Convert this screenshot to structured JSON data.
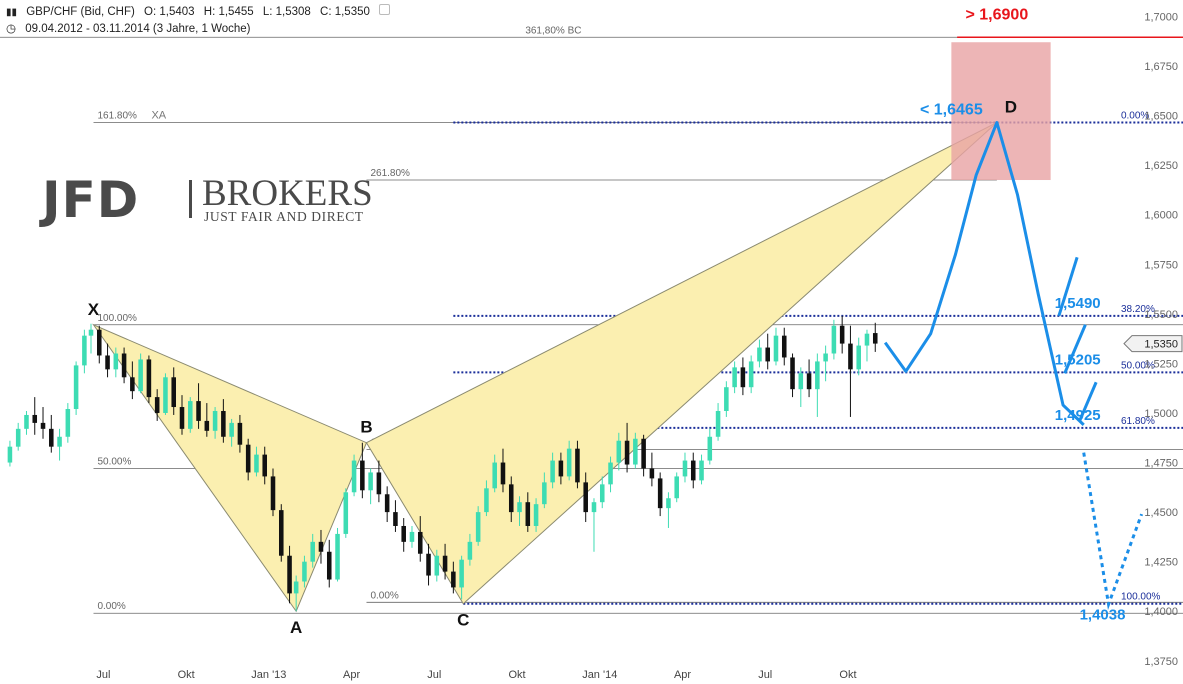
{
  "header": {
    "instrument": "GBP/CHF (Bid, CHF)",
    "open": "O: 1,5403",
    "high": "H: 1,5455",
    "low": "L: 1,5308",
    "close": "C: 1,5350",
    "range": "09.04.2012 - 03.11.2014 (3 Jahre, 1 Woche)"
  },
  "logo": {
    "main": "JFD",
    "sub": "BROKERS",
    "tagline": "JUST FAIR AND DIRECT"
  },
  "chart_data": {
    "type": "candlestick",
    "yaxis": {
      "ylim": [
        1.3633,
        1.7083
      ],
      "ticks": [
        1.7,
        1.675,
        1.65,
        1.625,
        1.6,
        1.575,
        1.55,
        1.525,
        1.5,
        1.475,
        1.45,
        1.425,
        1.4,
        1.375
      ],
      "tick_labels": [
        "1,7000",
        "1,6750",
        "1,6500",
        "1,6250",
        "1,6000",
        "1,5750",
        "1,5500",
        "1,5250",
        "1,5000",
        "1,4750",
        "1,4500",
        "1,4250",
        "1,4000",
        "1,3750"
      ],
      "last_price_label": "1,5350",
      "last_price": 1.535
    },
    "xaxis": {
      "range": [
        -0.5,
        13.8
      ],
      "ticks": [
        {
          "x": 0.75,
          "label": "Jul"
        },
        {
          "x": 1.75,
          "label": "Okt"
        },
        {
          "x": 2.75,
          "label": "Jan '13"
        },
        {
          "x": 3.75,
          "label": "Apr"
        },
        {
          "x": 4.75,
          "label": "Jul"
        },
        {
          "x": 5.75,
          "label": "Okt"
        },
        {
          "x": 6.75,
          "label": "Jan '14"
        },
        {
          "x": 7.75,
          "label": "Apr"
        },
        {
          "x": 8.75,
          "label": "Jul"
        },
        {
          "x": 9.75,
          "label": "Okt"
        }
      ]
    },
    "pattern_points": [
      {
        "label": "X",
        "x": 0.63,
        "y": 1.5445
      },
      {
        "label": "A",
        "x": 3.08,
        "y": 1.4
      },
      {
        "label": "B",
        "x": 3.93,
        "y": 1.485
      },
      {
        "label": "C",
        "x": 5.1,
        "y": 1.4038
      },
      {
        "label": "D",
        "x": 11.55,
        "y": 1.6465
      }
    ],
    "fib_lines": [
      {
        "y": 1.6895,
        "x0": -0.5,
        "x1": 13.8,
        "label": "361,80% BC",
        "label_pos": "center"
      },
      {
        "y": 1.6465,
        "x0": 0.63,
        "x1": 11.55,
        "label": "161.80%",
        "label2": "XA"
      },
      {
        "y": 1.6175,
        "x0": 3.93,
        "x1": 11.55,
        "label": "261.80%"
      },
      {
        "y": 1.5445,
        "x0": 0.63,
        "x1": 13.8,
        "label": "100.00%"
      },
      {
        "y": 1.4815,
        "x0": 3.93,
        "x1": 13.8,
        "label": "100.00%"
      },
      {
        "y": 1.472,
        "x0": 0.63,
        "x1": 13.8,
        "label": "50.00%"
      },
      {
        "y": 1.4045,
        "x0": 3.93,
        "x1": 13.8,
        "label": "0.00%"
      },
      {
        "y": 1.399,
        "x0": 0.63,
        "x1": 13.8,
        "label": "0.00%"
      }
    ],
    "retracement_levels": [
      {
        "y": 1.6465,
        "label": "0.00%",
        "price": ""
      },
      {
        "y": 1.549,
        "label": "38.20%",
        "price": "1,5490"
      },
      {
        "y": 1.5205,
        "label": "50.00%",
        "price": "1,5205"
      },
      {
        "y": 1.4925,
        "label": "61.80%",
        "price": "1,4925"
      },
      {
        "y": 1.4038,
        "label": "100.00%",
        "price": "1,4038"
      }
    ],
    "target_zone": {
      "x0": 11.0,
      "x1": 12.2,
      "y0": 1.6175,
      "y1": 1.687
    },
    "annotations": [
      {
        "text": "> 1,6900",
        "x": 11.55,
        "y": 1.6985,
        "color": "#e8151b"
      },
      {
        "text": "< 1,6465",
        "x": 11.0,
        "y": 1.6505,
        "color": "#1b8ee8"
      }
    ],
    "red_line": {
      "y": 1.6895,
      "x0": 11.07,
      "x1": 13.8
    },
    "projection": [
      [
        10.2,
        1.5355
      ],
      [
        10.45,
        1.521
      ],
      [
        10.75,
        1.54
      ],
      [
        11.05,
        1.58
      ],
      [
        11.3,
        1.62
      ],
      [
        11.55,
        1.6465
      ],
      [
        11.8,
        1.61
      ],
      [
        12.05,
        1.56
      ],
      [
        12.35,
        1.504
      ],
      [
        12.6,
        1.494
      ]
    ],
    "projection_branches": [
      [
        [
          12.3,
          1.549
        ],
        [
          12.52,
          1.5785
        ]
      ],
      [
        [
          12.37,
          1.52
        ],
        [
          12.62,
          1.5445
        ]
      ],
      [
        [
          12.55,
          1.496
        ],
        [
          12.75,
          1.5155
        ]
      ]
    ],
    "projection_dotted": [
      [
        12.6,
        1.48
      ],
      [
        12.9,
        1.4035
      ],
      [
        13.3,
        1.449
      ]
    ],
    "colors": {
      "up": "#3ddcb3",
      "down": "#111111",
      "pattern_fill": "#fbefb0",
      "zone": "#e9a3a4",
      "fib_blue": "#1b2f9a",
      "projection": "#1b8ee8",
      "gray": "#555555"
    },
    "candles": [
      [
        -0.38,
        1.475,
        1.486,
        1.473,
        1.483
      ],
      [
        -0.28,
        1.483,
        1.495,
        1.481,
        1.492
      ],
      [
        -0.18,
        1.492,
        1.501,
        1.489,
        1.499
      ],
      [
        -0.08,
        1.499,
        1.508,
        1.489,
        1.495
      ],
      [
        0.02,
        1.495,
        1.503,
        1.487,
        1.492
      ],
      [
        0.12,
        1.492,
        1.499,
        1.48,
        1.483
      ],
      [
        0.22,
        1.483,
        1.492,
        1.476,
        1.488
      ],
      [
        0.32,
        1.488,
        1.505,
        1.485,
        1.502
      ],
      [
        0.42,
        1.502,
        1.526,
        1.499,
        1.524
      ],
      [
        0.52,
        1.524,
        1.542,
        1.52,
        1.539
      ],
      [
        0.6,
        1.539,
        1.545,
        1.53,
        1.542
      ],
      [
        0.7,
        1.542,
        1.544,
        1.525,
        1.529
      ],
      [
        0.8,
        1.529,
        1.535,
        1.518,
        1.522
      ],
      [
        0.9,
        1.522,
        1.533,
        1.518,
        1.53
      ],
      [
        1.0,
        1.53,
        1.533,
        1.515,
        1.518
      ],
      [
        1.1,
        1.518,
        1.526,
        1.507,
        1.511
      ],
      [
        1.2,
        1.511,
        1.53,
        1.51,
        1.527
      ],
      [
        1.3,
        1.527,
        1.529,
        1.505,
        1.508
      ],
      [
        1.4,
        1.508,
        1.512,
        1.496,
        1.5
      ],
      [
        1.5,
        1.5,
        1.52,
        1.499,
        1.518
      ],
      [
        1.6,
        1.518,
        1.523,
        1.499,
        1.503
      ],
      [
        1.7,
        1.503,
        1.509,
        1.489,
        1.492
      ],
      [
        1.8,
        1.492,
        1.508,
        1.49,
        1.506
      ],
      [
        1.9,
        1.506,
        1.515,
        1.492,
        1.496
      ],
      [
        2.0,
        1.496,
        1.505,
        1.488,
        1.491
      ],
      [
        2.1,
        1.491,
        1.503,
        1.487,
        1.501
      ],
      [
        2.2,
        1.501,
        1.507,
        1.485,
        1.488
      ],
      [
        2.3,
        1.488,
        1.497,
        1.483,
        1.495
      ],
      [
        2.4,
        1.495,
        1.499,
        1.48,
        1.484
      ],
      [
        2.5,
        1.484,
        1.487,
        1.466,
        1.47
      ],
      [
        2.6,
        1.47,
        1.483,
        1.468,
        1.479
      ],
      [
        2.7,
        1.479,
        1.483,
        1.464,
        1.468
      ],
      [
        2.8,
        1.468,
        1.472,
        1.448,
        1.451
      ],
      [
        2.9,
        1.451,
        1.454,
        1.425,
        1.428
      ],
      [
        3.0,
        1.428,
        1.433,
        1.404,
        1.409
      ],
      [
        3.08,
        1.409,
        1.418,
        1.4,
        1.415
      ],
      [
        3.18,
        1.415,
        1.428,
        1.412,
        1.425
      ],
      [
        3.28,
        1.425,
        1.439,
        1.422,
        1.435
      ],
      [
        3.38,
        1.435,
        1.441,
        1.424,
        1.43
      ],
      [
        3.48,
        1.43,
        1.436,
        1.412,
        1.416
      ],
      [
        3.58,
        1.416,
        1.442,
        1.415,
        1.439
      ],
      [
        3.68,
        1.439,
        1.462,
        1.437,
        1.46
      ],
      [
        3.78,
        1.46,
        1.479,
        1.458,
        1.476
      ],
      [
        3.88,
        1.476,
        1.485,
        1.457,
        1.461
      ],
      [
        3.98,
        1.461,
        1.472,
        1.454,
        1.47
      ],
      [
        4.08,
        1.47,
        1.476,
        1.455,
        1.459
      ],
      [
        4.18,
        1.459,
        1.463,
        1.445,
        1.45
      ],
      [
        4.28,
        1.45,
        1.456,
        1.44,
        1.443
      ],
      [
        4.38,
        1.443,
        1.447,
        1.43,
        1.435
      ],
      [
        4.48,
        1.435,
        1.443,
        1.432,
        1.44
      ],
      [
        4.58,
        1.44,
        1.448,
        1.425,
        1.429
      ],
      [
        4.68,
        1.429,
        1.434,
        1.413,
        1.418
      ],
      [
        4.78,
        1.418,
        1.431,
        1.415,
        1.428
      ],
      [
        4.88,
        1.428,
        1.434,
        1.416,
        1.42
      ],
      [
        4.98,
        1.42,
        1.425,
        1.409,
        1.412
      ],
      [
        5.08,
        1.412,
        1.428,
        1.406,
        1.426
      ],
      [
        5.18,
        1.426,
        1.439,
        1.423,
        1.435
      ],
      [
        5.28,
        1.435,
        1.453,
        1.433,
        1.45
      ],
      [
        5.38,
        1.45,
        1.466,
        1.448,
        1.462
      ],
      [
        5.48,
        1.462,
        1.479,
        1.46,
        1.475
      ],
      [
        5.58,
        1.475,
        1.482,
        1.46,
        1.464
      ],
      [
        5.68,
        1.464,
        1.468,
        1.445,
        1.45
      ],
      [
        5.78,
        1.45,
        1.458,
        1.443,
        1.455
      ],
      [
        5.88,
        1.455,
        1.46,
        1.44,
        1.443
      ],
      [
        5.98,
        1.443,
        1.457,
        1.44,
        1.454
      ],
      [
        6.08,
        1.454,
        1.47,
        1.452,
        1.465
      ],
      [
        6.18,
        1.465,
        1.48,
        1.462,
        1.476
      ],
      [
        6.28,
        1.476,
        1.48,
        1.464,
        1.468
      ],
      [
        6.38,
        1.468,
        1.486,
        1.466,
        1.482
      ],
      [
        6.48,
        1.482,
        1.486,
        1.462,
        1.465
      ],
      [
        6.58,
        1.465,
        1.47,
        1.445,
        1.45
      ],
      [
        6.68,
        1.45,
        1.457,
        1.43,
        1.455
      ],
      [
        6.78,
        1.455,
        1.468,
        1.452,
        1.464
      ],
      [
        6.88,
        1.464,
        1.478,
        1.46,
        1.475
      ],
      [
        6.98,
        1.475,
        1.49,
        1.471,
        1.486
      ],
      [
        7.08,
        1.486,
        1.495,
        1.47,
        1.474
      ],
      [
        7.18,
        1.474,
        1.49,
        1.472,
        1.487
      ],
      [
        7.28,
        1.487,
        1.489,
        1.468,
        1.472
      ],
      [
        7.38,
        1.472,
        1.48,
        1.463,
        1.467
      ],
      [
        7.48,
        1.467,
        1.47,
        1.448,
        1.452
      ],
      [
        7.58,
        1.452,
        1.46,
        1.442,
        1.457
      ],
      [
        7.68,
        1.457,
        1.47,
        1.455,
        1.468
      ],
      [
        7.78,
        1.468,
        1.48,
        1.465,
        1.476
      ],
      [
        7.88,
        1.476,
        1.48,
        1.462,
        1.466
      ],
      [
        7.98,
        1.466,
        1.479,
        1.464,
        1.476
      ],
      [
        8.08,
        1.476,
        1.492,
        1.474,
        1.488
      ],
      [
        8.18,
        1.488,
        1.505,
        1.486,
        1.501
      ],
      [
        8.28,
        1.501,
        1.516,
        1.498,
        1.513
      ],
      [
        8.38,
        1.513,
        1.526,
        1.51,
        1.523
      ],
      [
        8.48,
        1.523,
        1.528,
        1.509,
        1.513
      ],
      [
        8.58,
        1.513,
        1.529,
        1.51,
        1.526
      ],
      [
        8.68,
        1.526,
        1.537,
        1.523,
        1.533
      ],
      [
        8.78,
        1.533,
        1.54,
        1.522,
        1.526
      ],
      [
        8.88,
        1.526,
        1.543,
        1.524,
        1.539
      ],
      [
        8.98,
        1.539,
        1.543,
        1.524,
        1.528
      ],
      [
        9.08,
        1.528,
        1.53,
        1.508,
        1.512
      ],
      [
        9.18,
        1.512,
        1.523,
        1.503,
        1.52
      ],
      [
        9.28,
        1.52,
        1.527,
        1.508,
        1.512
      ],
      [
        9.38,
        1.512,
        1.53,
        1.498,
        1.526
      ],
      [
        9.48,
        1.526,
        1.534,
        1.516,
        1.53
      ],
      [
        9.58,
        1.53,
        1.547,
        1.527,
        1.544
      ],
      [
        9.68,
        1.544,
        1.549,
        1.53,
        1.535
      ],
      [
        9.78,
        1.535,
        1.544,
        1.498,
        1.522
      ],
      [
        9.88,
        1.522,
        1.538,
        1.519,
        1.534
      ],
      [
        9.98,
        1.534,
        1.542,
        1.526,
        1.54
      ],
      [
        10.08,
        1.5403,
        1.5455,
        1.5308,
        1.535
      ]
    ]
  }
}
